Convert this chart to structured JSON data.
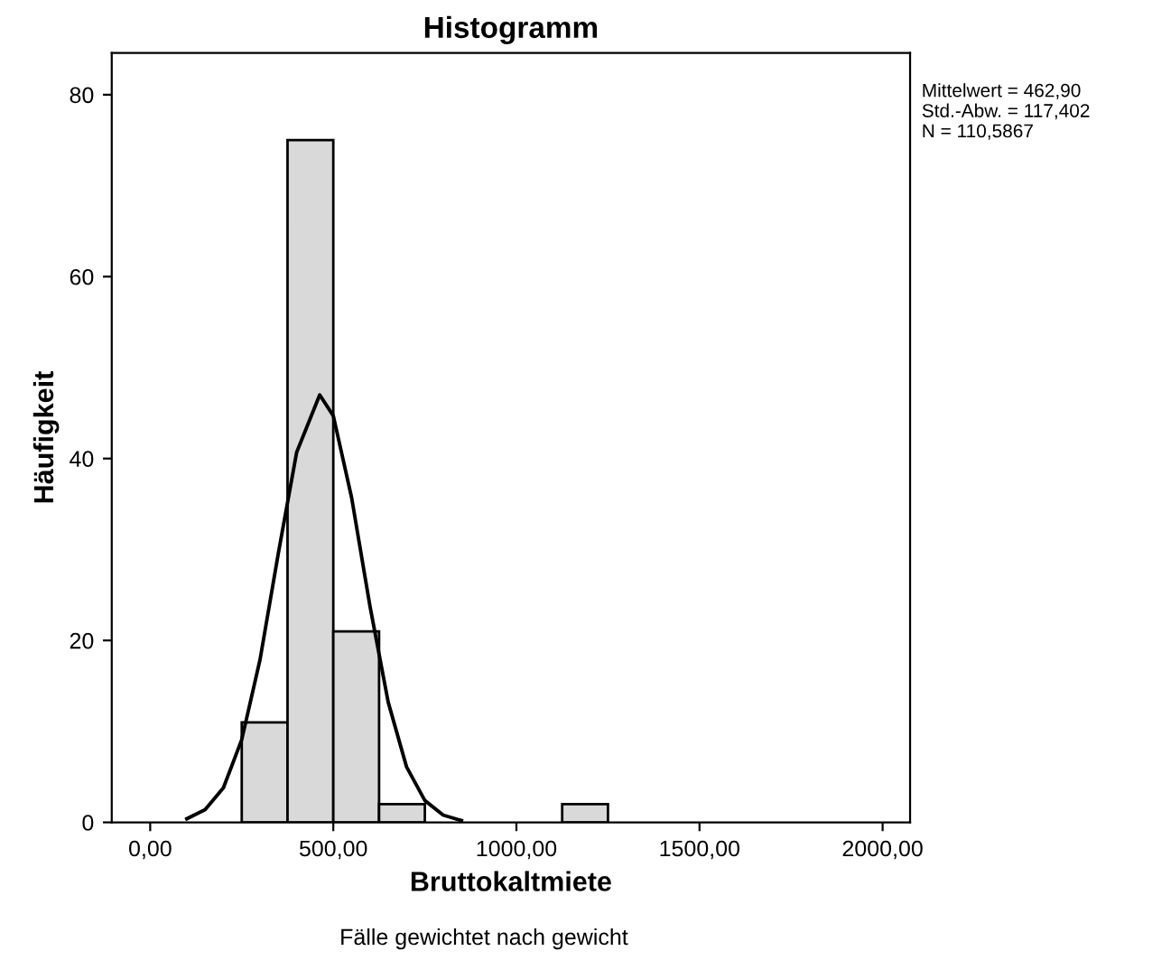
{
  "chart_data": {
    "type": "histogram",
    "title": "Histogramm",
    "xlabel": "Bruttokaltmiete",
    "ylabel": "Häufigkeit",
    "series": [
      {
        "type": "histogram",
        "color": "#d9d9d9",
        "bins": [
          250,
          375,
          500,
          625,
          750,
          875,
          1000,
          1125,
          1250
        ],
        "values": [
          11,
          75,
          21,
          2,
          0,
          0,
          0,
          2
        ]
      },
      {
        "type": "line",
        "color": "#000000",
        "x": [
          100,
          150,
          200,
          250,
          300,
          350,
          400,
          462.9,
          500,
          550,
          600,
          650,
          700,
          750,
          800,
          850
        ],
        "values": [
          0.4,
          1.4,
          3.8,
          9.1,
          17.9,
          29.6,
          40.7,
          47.0,
          44.7,
          35.7,
          23.8,
          13.2,
          6.1,
          2.4,
          0.8,
          0.2
        ]
      }
    ],
    "xlim": [
      -105,
      2075
    ],
    "ylim": [
      0,
      84.6
    ],
    "xticks": [
      {
        "value": 0,
        "label": "0,00"
      },
      {
        "value": 500,
        "label": "500,00"
      },
      {
        "value": 1000,
        "label": "1000,00"
      },
      {
        "value": 1500,
        "label": "1500,00"
      },
      {
        "value": 2000,
        "label": "2000,00"
      }
    ],
    "yticks": [
      0,
      20,
      40,
      60,
      80
    ],
    "grid": false,
    "legend": false,
    "marker": "none",
    "line_style": "solid",
    "annotations": [
      "Mittelwert = 462,90\nStd.-Abw. = 117,402\nN = 110,5867",
      "Fälle gewichtet nach gewicht"
    ]
  }
}
